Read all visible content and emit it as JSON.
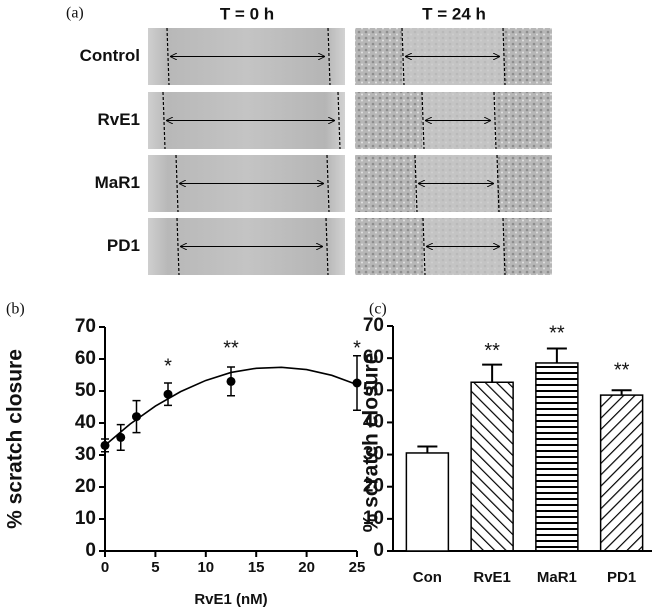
{
  "panel_a": {
    "label": "(a)",
    "columns": [
      "T = 0 h",
      "T = 24 h"
    ],
    "rows": [
      "Control",
      "RvE1",
      "MaR1",
      "PD1"
    ]
  },
  "chart_data": [
    {
      "type": "scatter",
      "label": "(b)",
      "x_label": "RvE1 (nM)",
      "y_label": "% scratch closure",
      "x": [
        0,
        1.5625,
        3.125,
        6.25,
        12.5,
        25
      ],
      "values": [
        33,
        35.5,
        42,
        49,
        53,
        52.5
      ],
      "errors": [
        2,
        4,
        5,
        3.5,
        4.5,
        8.5
      ],
      "fit": {
        "x": [
          0,
          2.5,
          5,
          7.5,
          10,
          12.5,
          15,
          17.5,
          20,
          22.5,
          25
        ],
        "values": [
          33,
          39.7,
          45.3,
          49.8,
          53.3,
          55.8,
          57.1,
          57.4,
          56.7,
          54.9,
          52
        ]
      },
      "annotations": [
        {
          "x": 6.25,
          "y": 57.5,
          "text": "*"
        },
        {
          "x": 12.5,
          "y": 63,
          "text": "**"
        },
        {
          "x": 25,
          "y": 63,
          "text": "*"
        }
      ],
      "xlim": [
        0,
        25
      ],
      "xticks": [
        0,
        5,
        10,
        15,
        20,
        25
      ],
      "ylim": [
        0,
        70
      ],
      "yticks": [
        0,
        10,
        20,
        30,
        40,
        50,
        60,
        70
      ],
      "color": "#000000"
    },
    {
      "type": "bar",
      "label": "(c)",
      "y_label": "% scratch closure",
      "categories": [
        "Con",
        "RvE1",
        "MaR1",
        "PD1"
      ],
      "values": [
        30.5,
        52.5,
        58.5,
        48.5
      ],
      "errors": [
        2,
        5.5,
        4.5,
        1.5
      ],
      "patterns": [
        "none",
        "backslash",
        "horizontal",
        "slash"
      ],
      "annotations": [
        {
          "category": "RvE1",
          "y": 62,
          "text": "**"
        },
        {
          "category": "MaR1",
          "y": 67.5,
          "text": "**"
        },
        {
          "category": "PD1",
          "y": 56,
          "text": "**"
        }
      ],
      "ylim": [
        0,
        70
      ],
      "yticks": [
        0,
        10,
        20,
        30,
        40,
        50,
        60,
        70
      ],
      "color": "#000000"
    }
  ]
}
